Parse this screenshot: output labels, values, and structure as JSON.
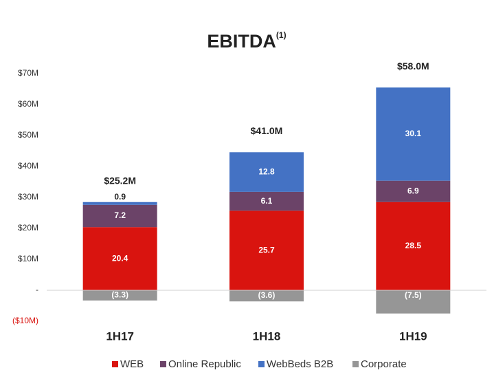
{
  "chart_data": {
    "type": "stacked-bar",
    "title": "EBITDA",
    "title_note": "(1)",
    "categories": [
      "1H17",
      "1H18",
      "1H19"
    ],
    "series": [
      {
        "name": "WEB",
        "color": "#d9140f",
        "values": [
          20.4,
          25.7,
          28.5
        ]
      },
      {
        "name": "Online Republic",
        "color": "#6b4368",
        "values": [
          7.2,
          6.1,
          6.9
        ]
      },
      {
        "name": "WebBeds B2B",
        "color": "#4472c4",
        "values": [
          0.9,
          12.8,
          30.1
        ]
      },
      {
        "name": "Corporate",
        "color": "#969696",
        "values": [
          -3.3,
          -3.6,
          -7.5
        ],
        "value_labels": [
          "(3.3)",
          "(3.6)",
          "(7.5)"
        ]
      }
    ],
    "totals": {
      "values": [
        25.2,
        41.0,
        58.0
      ],
      "value_labels": [
        "$25.2M",
        "$41.0M",
        "$58.0M"
      ]
    },
    "ylim": [
      -10,
      70
    ],
    "yticks": [
      {
        "value": -10,
        "label": "($10M)"
      },
      {
        "value": 0,
        "label": "-"
      },
      {
        "value": 10,
        "label": "$10M"
      },
      {
        "value": 20,
        "label": "$20M"
      },
      {
        "value": 30,
        "label": "$30M"
      },
      {
        "value": 40,
        "label": "$40M"
      },
      {
        "value": 50,
        "label": "$50M"
      },
      {
        "value": 60,
        "label": "$60M"
      },
      {
        "value": 70,
        "label": "$70M"
      }
    ],
    "grid": false,
    "legend": "bottom"
  }
}
